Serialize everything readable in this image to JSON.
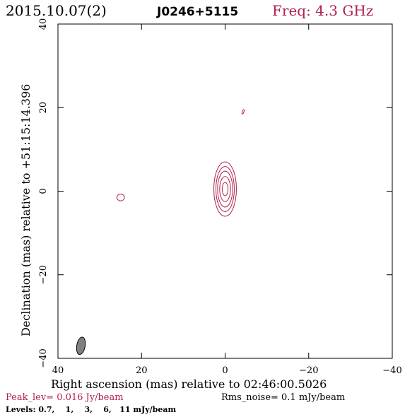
{
  "header": {
    "date": "2015.10.07(2)",
    "source": "J0246+5115",
    "freq": "Freq: 4.3 GHz"
  },
  "footer": {
    "peak": "Peak_lev=  0.016 Jy/beam",
    "rms": "Rms_noise=   0.1 mJy/beam",
    "levels": "Levels: 0.7,    1,    3,    6,   11 mJy/beam"
  },
  "colors": {
    "accent": "#b0204a",
    "contour": "#b0204a",
    "beam_fill": "#808080",
    "ink": "#000000"
  },
  "chart_data": {
    "type": "contour",
    "xlabel": "Right ascension (mas) relative to 02:46:00.5026",
    "ylabel": "Declination (mas) relative to +51:15:14.396",
    "xlim": [
      40,
      -40
    ],
    "ylim": [
      -40,
      40
    ],
    "x_ticks": [
      40,
      20,
      0,
      -20,
      -40
    ],
    "x_tick_labels": [
      "40",
      "20",
      "0",
      "−20",
      "−40"
    ],
    "y_ticks": [
      40,
      20,
      0,
      -20,
      -40
    ],
    "y_tick_labels": [
      "40",
      "20",
      "0",
      "−20",
      "−40"
    ],
    "levels_mJy_per_beam": [
      0.7,
      1,
      3,
      6,
      11
    ],
    "peak_Jy_per_beam": 0.016,
    "rms_mJy_per_beam": 0.1,
    "frequency_GHz": 4.3,
    "main_component": {
      "x_mas": 0,
      "y_mas": 0.5,
      "contours": [
        {
          "level": 0.7,
          "half_width_mas": 2.7,
          "half_height_mas": 6.5
        },
        {
          "level": 1,
          "half_width_mas": 2.2,
          "half_height_mas": 5.4
        },
        {
          "level": 3,
          "half_width_mas": 1.8,
          "half_height_mas": 4.3
        },
        {
          "level": 6,
          "half_width_mas": 1.3,
          "half_height_mas": 3.0
        },
        {
          "level": 11,
          "half_width_mas": 0.7,
          "half_height_mas": 1.6
        }
      ]
    },
    "minor_components": [
      {
        "x_mas": 25,
        "y_mas": -1.5,
        "half_width_mas": 0.9,
        "half_height_mas": 0.8,
        "angle_deg": 0
      },
      {
        "x_mas": -4.3,
        "y_mas": 19,
        "half_width_mas": 0.2,
        "half_height_mas": 0.55,
        "angle_deg": 20
      }
    ],
    "beam": {
      "x_mas": 34.5,
      "y_mas": -37,
      "half_width_mas": 1.0,
      "half_height_mas": 2.1,
      "angle_deg": 10
    }
  }
}
